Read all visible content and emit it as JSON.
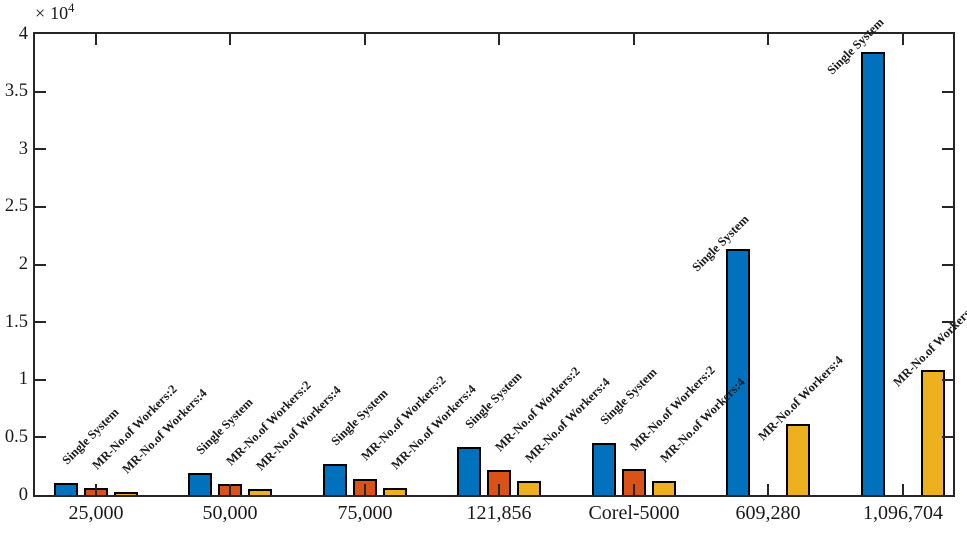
{
  "chart_data": {
    "type": "bar",
    "title": "",
    "xlabel": "",
    "ylabel": "",
    "categories": [
      "25,000",
      "50,000",
      "75,000",
      "121,856",
      "Corel-5000",
      "609,280",
      "1,096,704"
    ],
    "series": [
      {
        "name": "Single System",
        "color": "#0072BD",
        "values": [
          1000,
          1950,
          2700,
          4200,
          4550,
          21350,
          38450
        ]
      },
      {
        "name": "MR-No.of Workers:2",
        "color": "#D95319",
        "values": [
          600,
          950,
          1400,
          2200,
          2250,
          null,
          null
        ]
      },
      {
        "name": "MR-No.of Workers:4",
        "color": "#EDB120",
        "values": [
          300,
          500,
          650,
          1200,
          1250,
          6200,
          10850
        ]
      }
    ],
    "bar_labels_note": "each bar is annotated above with its series name, rotated 45 degrees",
    "ylim": [
      0,
      40000
    ],
    "ytick_step": 5000,
    "ytick_labels": [
      "0",
      "0.5",
      "1",
      "1.5",
      "2",
      "2.5",
      "3",
      "3.5",
      "4"
    ],
    "y_scale": {
      "symbol": "×",
      "base": "10",
      "exponent": "4"
    },
    "grid": false,
    "legend": "none",
    "box": true,
    "ticks_direction": "in",
    "axis_color": "#262626",
    "bar_edge_color": "#000000"
  }
}
